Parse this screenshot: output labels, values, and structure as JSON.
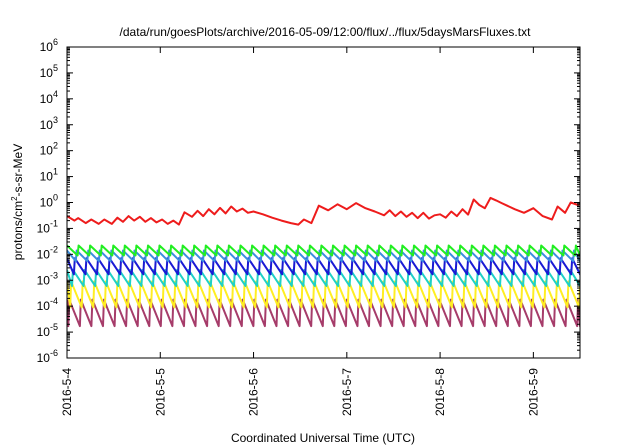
{
  "chart_data": {
    "type": "line",
    "title": "/data/run/goesPlots/archive/2016-05-09/12:00/flux/../flux/5daysMarsFluxes.txt",
    "xlabel": "Coordinated Universal Time (UTC)",
    "ylabel_parts": [
      "protons/cm",
      "2",
      "-s-sr-MeV"
    ],
    "yscale": "log",
    "xlim": [
      "2016-05-04 00:00",
      "2016-05-09 12:00"
    ],
    "ylim": [
      1e-06,
      1000000.0
    ],
    "grid": false,
    "legend": "none",
    "x_ticks": [
      "2016-5-4",
      "2016-5-5",
      "2016-5-6",
      "2016-5-7",
      "2016-5-8",
      "2016-5-9"
    ],
    "y_ticks": [
      {
        "base": "10",
        "exp": "-6"
      },
      {
        "base": "10",
        "exp": "-5"
      },
      {
        "base": "10",
        "exp": "-4"
      },
      {
        "base": "10",
        "exp": "-3"
      },
      {
        "base": "10",
        "exp": "-2"
      },
      {
        "base": "10",
        "exp": "-1"
      },
      {
        "base": "10",
        "exp": "0"
      },
      {
        "base": "10",
        "exp": "1"
      },
      {
        "base": "10",
        "exp": "2"
      },
      {
        "base": "10",
        "exp": "3"
      },
      {
        "base": "10",
        "exp": "4"
      },
      {
        "base": "10",
        "exp": "5"
      },
      {
        "base": "10",
        "exp": "6"
      }
    ],
    "series": [
      {
        "color": "#ee1c1c",
        "x_days": [
          0.0,
          0.08,
          0.12,
          0.2,
          0.26,
          0.34,
          0.4,
          0.48,
          0.54,
          0.6,
          0.66,
          0.72,
          0.78,
          0.84,
          0.9,
          0.96,
          1.02,
          1.08,
          1.14,
          1.2,
          1.26,
          1.34,
          1.4,
          1.46,
          1.52,
          1.58,
          1.64,
          1.7,
          1.76,
          1.82,
          1.88,
          1.94,
          2.0,
          2.1,
          2.2,
          2.3,
          2.4,
          2.48,
          2.54,
          2.62,
          2.7,
          2.8,
          2.9,
          3.0,
          3.1,
          3.2,
          3.3,
          3.4,
          3.46,
          3.52,
          3.58,
          3.64,
          3.7,
          3.76,
          3.82,
          3.88,
          3.94,
          4.0,
          4.06,
          4.12,
          4.18,
          4.24,
          4.3,
          4.36,
          4.42,
          4.48,
          4.54,
          4.6,
          4.66,
          4.72,
          4.8,
          4.9,
          5.0,
          5.1,
          5.2,
          5.26,
          5.34,
          5.4,
          5.48,
          5.5
        ],
        "y": [
          0.3,
          0.2,
          0.25,
          0.16,
          0.22,
          0.15,
          0.22,
          0.15,
          0.26,
          0.18,
          0.3,
          0.2,
          0.28,
          0.18,
          0.25,
          0.17,
          0.22,
          0.15,
          0.2,
          0.14,
          0.42,
          0.28,
          0.48,
          0.3,
          0.55,
          0.35,
          0.62,
          0.38,
          0.7,
          0.45,
          0.58,
          0.4,
          0.45,
          0.35,
          0.26,
          0.2,
          0.16,
          0.14,
          0.22,
          0.16,
          0.75,
          0.5,
          0.85,
          0.55,
          0.95,
          0.6,
          0.45,
          0.32,
          0.5,
          0.3,
          0.45,
          0.28,
          0.4,
          0.25,
          0.4,
          0.24,
          0.32,
          0.35,
          0.26,
          0.45,
          0.3,
          0.55,
          0.34,
          1.3,
          0.8,
          0.6,
          1.5,
          1.2,
          0.95,
          0.75,
          0.55,
          0.4,
          0.6,
          0.3,
          0.22,
          0.7,
          0.4,
          1.0,
          0.8,
          0.9
        ]
      },
      {
        "color": "#22ee22",
        "level": 0.022,
        "dip": 0.009,
        "phase": 0.0
      },
      {
        "color": "#3b8fdf",
        "level": 0.014,
        "dip": 0.0055,
        "phase": 0.02
      },
      {
        "color": "#1a1ad4",
        "level": 0.007,
        "dip": 0.0017,
        "phase": 0.04
      },
      {
        "color": "#1fd0c6",
        "level": 0.0025,
        "dip": 0.0006,
        "phase": 0.06
      },
      {
        "color": "#ffee22",
        "level": 0.0009,
        "dip": 9e-05,
        "phase": 0.08
      },
      {
        "color": "#a63c6a",
        "level": 0.00018,
        "dip": 1.7e-05,
        "phase": 0.1
      }
    ],
    "periodic_series_period_days": 0.124
  }
}
